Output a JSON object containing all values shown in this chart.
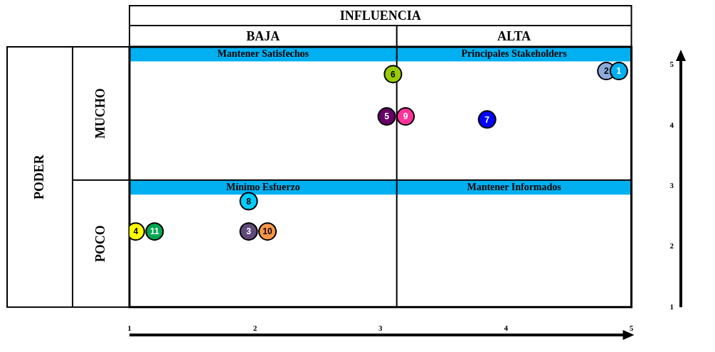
{
  "chart_data": {
    "type": "scatter",
    "xlabel": "INFLUENCIA",
    "annotations": [
      "BAJA",
      "ALTA",
      "MUCHO",
      "POCO",
      "Mantener Satisfechos",
      "Principales Stakeholders",
      "Mínimo Esfuerzo",
      "Mantener Informados",
      "PODER"
    ],
    "bands": [
      {
        "axis": "y",
        "from": 5.06,
        "to": 5.3,
        "color": "#00b0f0"
      },
      {
        "axis": "y",
        "from": 2.86,
        "to": 3.1,
        "color": "#00b0f0"
      }
    ],
    "xlim": [
      1,
      5
    ],
    "xticks": [
      1,
      2,
      3,
      4,
      5
    ],
    "ylim": [
      1,
      5.3
    ],
    "yticks": [
      1,
      2,
      3,
      4,
      5
    ],
    "ref_lines": [
      {
        "axis": "x",
        "value": 3.13
      },
      {
        "axis": "y",
        "value": 3.1
      }
    ],
    "grid": false,
    "legend": false,
    "marker": "circle",
    "series": [
      {
        "name": "1",
        "color": "#00b0f0",
        "x": [
          4.9
        ],
        "values": [
          4.9
        ]
      },
      {
        "name": "2",
        "color": "#8eaadb",
        "x": [
          4.8
        ],
        "values": [
          4.9
        ]
      },
      {
        "name": "3",
        "color": "#604a7b",
        "x": [
          1.95
        ],
        "values": [
          2.25
        ]
      },
      {
        "name": "4",
        "color": "#ffff00",
        "x": [
          1.05
        ],
        "values": [
          2.25
        ]
      },
      {
        "name": "5",
        "color": "#660066",
        "x": [
          3.05
        ],
        "values": [
          4.15
        ]
      },
      {
        "name": "6",
        "color": "#99cc00",
        "x": [
          3.1
        ],
        "values": [
          4.85
        ]
      },
      {
        "name": "7",
        "color": "#0000ff",
        "x": [
          3.85
        ],
        "values": [
          4.1
        ]
      },
      {
        "name": "8",
        "color": "#00ccff",
        "x": [
          1.95
        ],
        "values": [
          2.75
        ]
      },
      {
        "name": "9",
        "color": "#ff3399",
        "x": [
          3.2
        ],
        "values": [
          4.15
        ]
      },
      {
        "name": "10",
        "color": "#f79646",
        "x": [
          2.1
        ],
        "values": [
          2.25
        ]
      },
      {
        "name": "11",
        "color": "#00a651",
        "x": [
          1.2
        ],
        "values": [
          2.25
        ]
      }
    ]
  }
}
